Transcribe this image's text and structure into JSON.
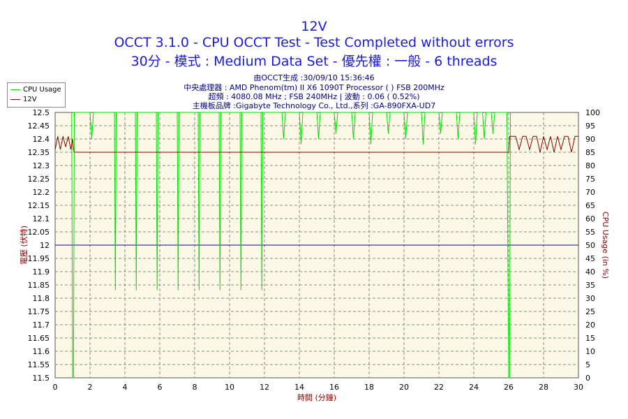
{
  "titles": {
    "line1": "12V",
    "line2": "OCCT 3.1.0 - CPU OCCT Test - Test Completed without errors",
    "line3": "30分 - 模式 : Medium Data Set - 優先權 : 一般 - 6 threads"
  },
  "info": {
    "line1": "由OCCT生成 :30/09/10 15:36:46",
    "line2": "中央處理器 : AMD Phenom(tm) II X6 1090T Processor (  ) FSB 200MHz",
    "line3": "超頻 : 4080.08 MHz ; FSB 240MHz | 波動 : 0.06 ( 0.52%)",
    "line4": "主機板品牌 :Gigabyte Technology Co., Ltd.,系列 :GA-890FXA-UD7"
  },
  "colors": {
    "title": "#1a1adc",
    "plot_bg": "#fbf8e6",
    "grid": "#8a8a8a",
    "cpu_line": "#00dd00",
    "v12_line": "#8b0000",
    "ref_line": "#0000cc",
    "left_axis_label": "#8b0000",
    "right_axis_label": "#8b0000"
  },
  "chart_data": {
    "type": "line",
    "xlabel": "時間 (分鐘)",
    "ylabel_left": "電壓 (伏特)",
    "ylabel_right": "CPU Usage (in %)",
    "xlim": [
      0,
      30
    ],
    "ylim_left": [
      11.5,
      12.5
    ],
    "ylim_right": [
      0,
      100
    ],
    "x_ticks": [
      "0",
      "2",
      "4",
      "6",
      "8",
      "10",
      "12",
      "14",
      "16",
      "18",
      "20",
      "22",
      "24",
      "26",
      "28",
      "30"
    ],
    "y_ticks_left": [
      "11.5",
      "11.55",
      "11.6",
      "11.65",
      "11.7",
      "11.75",
      "11.8",
      "11.85",
      "11.9",
      "11.95",
      "12",
      "12.05",
      "12.1",
      "12.15",
      "12.2",
      "12.25",
      "12.3",
      "12.35",
      "12.4",
      "12.45",
      "12.5"
    ],
    "y_ticks_right": [
      "0",
      "5",
      "10",
      "15",
      "20",
      "25",
      "30",
      "35",
      "40",
      "45",
      "50",
      "55",
      "60",
      "65",
      "70",
      "75",
      "80",
      "85",
      "90",
      "95",
      "100"
    ],
    "grid": true,
    "legend_position": "top-left",
    "reference_line": {
      "value": 12.0,
      "axis": "left"
    },
    "series": [
      {
        "name": "CPU Usage",
        "axis": "right",
        "x": [
          0,
          0.95,
          1.0,
          1.05,
          1.1,
          1.2,
          2.0,
          2.1,
          2.2,
          2.3,
          3.0,
          3.4,
          3.45,
          3.5,
          3.6,
          4.6,
          4.65,
          4.7,
          4.8,
          5.8,
          5.85,
          5.9,
          6.0,
          7.0,
          7.05,
          7.1,
          7.2,
          8.2,
          8.25,
          8.3,
          8.4,
          9.4,
          9.45,
          9.5,
          9.6,
          10.6,
          10.65,
          10.7,
          10.8,
          11.8,
          11.85,
          11.9,
          12.0,
          13.0,
          13.1,
          13.2,
          14.0,
          14.1,
          14.2,
          15.0,
          15.1,
          15.2,
          16.0,
          16.1,
          16.2,
          17.0,
          17.1,
          17.2,
          18.0,
          18.1,
          18.2,
          19.0,
          19.1,
          19.2,
          20.0,
          20.1,
          20.2,
          21.0,
          21.1,
          21.2,
          22.0,
          22.1,
          22.2,
          23.0,
          23.1,
          23.2,
          24.0,
          24.1,
          24.2,
          24.5,
          24.6,
          24.7,
          25.0,
          25.1,
          25.2,
          25.9,
          26.0,
          26.05,
          26.1,
          30
        ],
        "values": [
          null,
          100,
          0,
          0,
          100,
          100,
          100,
          90,
          100,
          100,
          100,
          100,
          33,
          100,
          100,
          100,
          33,
          100,
          100,
          100,
          33,
          100,
          100,
          100,
          33,
          100,
          100,
          100,
          33,
          100,
          100,
          100,
          33,
          100,
          100,
          100,
          33,
          100,
          100,
          100,
          33,
          100,
          100,
          100,
          90,
          100,
          100,
          88,
          100,
          100,
          90,
          100,
          100,
          92,
          100,
          100,
          90,
          100,
          100,
          88,
          100,
          100,
          92,
          100,
          100,
          90,
          100,
          100,
          88,
          100,
          100,
          92,
          100,
          100,
          90,
          100,
          100,
          88,
          100,
          100,
          90,
          100,
          100,
          92,
          100,
          100,
          0,
          0,
          100,
          null
        ]
      },
      {
        "name": "12V",
        "axis": "left",
        "x": [
          0,
          0.15,
          0.3,
          0.45,
          0.6,
          0.75,
          0.9,
          1.0,
          1.05,
          1.1,
          25.95,
          26.0,
          26.05,
          26.2,
          26.4,
          26.6,
          26.8,
          27.0,
          27.2,
          27.4,
          27.6,
          27.8,
          28.0,
          28.2,
          28.4,
          28.6,
          28.8,
          29.0,
          29.2,
          29.4,
          29.6,
          29.8,
          30
        ],
        "values": [
          12.36,
          12.41,
          12.36,
          12.41,
          12.37,
          12.41,
          12.36,
          12.4,
          12.36,
          12.35,
          12.35,
          12.35,
          12.41,
          12.41,
          12.41,
          12.36,
          12.41,
          12.41,
          12.36,
          12.41,
          12.41,
          12.35,
          12.41,
          12.36,
          12.41,
          12.35,
          12.41,
          12.36,
          12.41,
          12.41,
          12.35,
          12.41,
          12.41
        ]
      }
    ]
  }
}
